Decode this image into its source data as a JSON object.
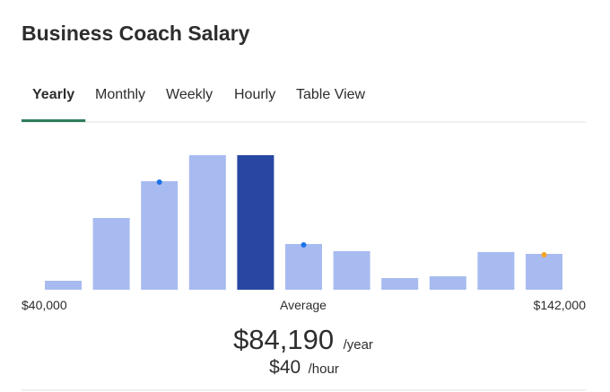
{
  "header": {
    "title": "Business Coach Salary"
  },
  "tabs": {
    "items": [
      "Yearly",
      "Monthly",
      "Weekly",
      "Hourly",
      "Table View"
    ],
    "active": "Yearly",
    "active_color": "#2d7d5a"
  },
  "chart_data": {
    "type": "bar",
    "values": [
      10,
      80,
      121,
      150,
      150,
      51,
      43,
      13,
      15,
      42,
      40
    ],
    "colors": [
      "#a8bbf0",
      "#a8bbf0",
      "#a8bbf0",
      "#a8bbf0",
      "#2747a3",
      "#a8bbf0",
      "#a8bbf0",
      "#a8bbf0",
      "#a8bbf0",
      "#a8bbf0",
      "#a8bbf0"
    ],
    "dot_colors": [
      null,
      null,
      "#1a73e8",
      null,
      null,
      "#1a73e8",
      null,
      null,
      null,
      null,
      "#f5a623"
    ],
    "ylim": [
      0,
      150
    ],
    "labels": {
      "min": "$40,000",
      "average": "Average",
      "max": "$142,000"
    }
  },
  "salary": {
    "yearly": "$84,190",
    "yearly_unit": "/year",
    "hourly": "$40",
    "hourly_unit": "/hour"
  }
}
